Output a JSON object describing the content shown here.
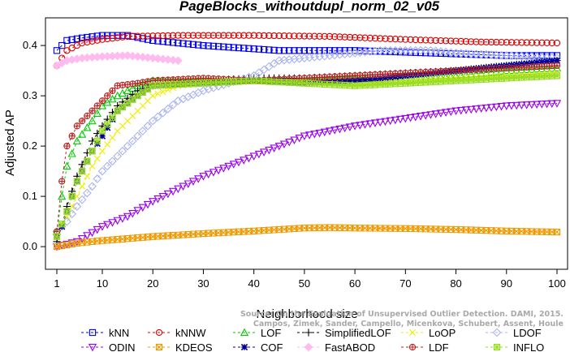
{
  "chart_data": {
    "type": "line",
    "title": "PageBlocks_withoutdupl_norm_02_v05",
    "xlabel": "Neighborhood size",
    "ylabel": "Adjusted AP",
    "xlim": [
      1,
      100
    ],
    "ylim": [
      -0.045,
      0.455
    ],
    "x_ticks": [
      1,
      10,
      20,
      30,
      40,
      50,
      60,
      70,
      80,
      90,
      100
    ],
    "y_ticks": [
      0.0,
      0.1,
      0.2,
      0.3,
      0.4
    ],
    "x_tick_labels": [
      "1",
      "10",
      "20",
      "30",
      "40",
      "50",
      "60",
      "70",
      "80",
      "90",
      "100"
    ],
    "y_tick_labels": [
      "0.0",
      "0.1",
      "0.2",
      "0.3",
      "0.4"
    ],
    "grid": false,
    "legend_position": "bottom",
    "watermark": [
      "Source: On the Evaluation of Unsupervised Outlier Detection. DAMI, 2015.",
      "Campos, Zimek, Sander, Campello, Micenkova, Schubert, Assent, Houle"
    ],
    "series": [
      {
        "name": "kNN",
        "color": "#0000ee",
        "marker": "square",
        "dash": "3,3",
        "legend_col": 0,
        "legend_row": 0,
        "points": [
          [
            1,
            0.39
          ],
          [
            3,
            0.41
          ],
          [
            6,
            0.415
          ],
          [
            10,
            0.42
          ],
          [
            15,
            0.42
          ],
          [
            20,
            0.41
          ],
          [
            30,
            0.4
          ],
          [
            45,
            0.39
          ],
          [
            60,
            0.39
          ],
          [
            75,
            0.385
          ],
          [
            90,
            0.38
          ],
          [
            100,
            0.38
          ]
        ]
      },
      {
        "name": "kNNW",
        "color": "#dd0000",
        "marker": "circle",
        "dash": "3,3",
        "legend_col": 1,
        "legend_row": 0,
        "points": [
          [
            1,
            0.36
          ],
          [
            3,
            0.39
          ],
          [
            6,
            0.405
          ],
          [
            10,
            0.412
          ],
          [
            15,
            0.418
          ],
          [
            25,
            0.42
          ],
          [
            40,
            0.42
          ],
          [
            55,
            0.418
          ],
          [
            70,
            0.412
          ],
          [
            85,
            0.407
          ],
          [
            100,
            0.405
          ]
        ]
      },
      {
        "name": "LOF",
        "color": "#00cc00",
        "marker": "triangle",
        "dash": "3,3",
        "legend_col": 2,
        "legend_row": 0,
        "points": [
          [
            1,
            0.03
          ],
          [
            2,
            0.1
          ],
          [
            3,
            0.16
          ],
          [
            5,
            0.21
          ],
          [
            8,
            0.25
          ],
          [
            10,
            0.28
          ],
          [
            13,
            0.3
          ],
          [
            17,
            0.32
          ],
          [
            20,
            0.33
          ],
          [
            30,
            0.33
          ],
          [
            40,
            0.33
          ],
          [
            50,
            0.33
          ],
          [
            60,
            0.335
          ],
          [
            70,
            0.33
          ],
          [
            80,
            0.34
          ],
          [
            90,
            0.35
          ],
          [
            100,
            0.355
          ]
        ]
      },
      {
        "name": "SimplifiedLOF",
        "color": "#000000",
        "marker": "plus",
        "dash": "3,3",
        "legend_col": 3,
        "legend_row": 0,
        "points": [
          [
            1,
            0.01
          ],
          [
            2,
            0.04
          ],
          [
            3,
            0.08
          ],
          [
            5,
            0.14
          ],
          [
            8,
            0.21
          ],
          [
            10,
            0.24
          ],
          [
            13,
            0.28
          ],
          [
            17,
            0.31
          ],
          [
            20,
            0.32
          ],
          [
            30,
            0.33
          ],
          [
            40,
            0.335
          ],
          [
            50,
            0.335
          ],
          [
            60,
            0.34
          ],
          [
            70,
            0.345
          ],
          [
            80,
            0.35
          ],
          [
            90,
            0.36
          ],
          [
            100,
            0.37
          ]
        ]
      },
      {
        "name": "LoOP",
        "color": "#eeee00",
        "marker": "x",
        "dash": "3,3",
        "legend_col": 4,
        "legend_row": 0,
        "points": [
          [
            1,
            0.02
          ],
          [
            3,
            0.06
          ],
          [
            5,
            0.1
          ],
          [
            8,
            0.16
          ],
          [
            10,
            0.19
          ],
          [
            13,
            0.23
          ],
          [
            17,
            0.27
          ],
          [
            20,
            0.3
          ],
          [
            25,
            0.32
          ],
          [
            30,
            0.325
          ],
          [
            40,
            0.33
          ],
          [
            50,
            0.325
          ],
          [
            60,
            0.325
          ],
          [
            70,
            0.33
          ],
          [
            80,
            0.335
          ],
          [
            90,
            0.34
          ],
          [
            100,
            0.345
          ]
        ]
      },
      {
        "name": "LDOF",
        "color": "#aab4ee",
        "marker": "diamond",
        "dash": "3,3",
        "legend_col": 5,
        "legend_row": 0,
        "points": [
          [
            1,
            0.03
          ],
          [
            3,
            0.05
          ],
          [
            5,
            0.08
          ],
          [
            8,
            0.12
          ],
          [
            10,
            0.15
          ],
          [
            13,
            0.18
          ],
          [
            16,
            0.21
          ],
          [
            20,
            0.25
          ],
          [
            25,
            0.29
          ],
          [
            30,
            0.31
          ],
          [
            35,
            0.325
          ],
          [
            40,
            0.34
          ],
          [
            45,
            0.37
          ],
          [
            50,
            0.375
          ],
          [
            55,
            0.38
          ],
          [
            60,
            0.385
          ],
          [
            65,
            0.39
          ],
          [
            70,
            0.39
          ],
          [
            75,
            0.39
          ],
          [
            80,
            0.385
          ],
          [
            90,
            0.38
          ],
          [
            100,
            0.375
          ]
        ]
      },
      {
        "name": "ODIN",
        "color": "#9900ee",
        "marker": "triangle-down",
        "dash": "3,3",
        "legend_col": 0,
        "legend_row": 1,
        "points": [
          [
            1,
            0.0
          ],
          [
            5,
            0.01
          ],
          [
            10,
            0.04
          ],
          [
            15,
            0.06
          ],
          [
            20,
            0.09
          ],
          [
            30,
            0.14
          ],
          [
            40,
            0.18
          ],
          [
            50,
            0.22
          ],
          [
            55,
            0.23
          ],
          [
            60,
            0.24
          ],
          [
            70,
            0.255
          ],
          [
            80,
            0.27
          ],
          [
            90,
            0.28
          ],
          [
            100,
            0.285
          ]
        ]
      },
      {
        "name": "KDEOS",
        "color": "#ee9900",
        "marker": "square-x",
        "dash": "3,3",
        "legend_col": 1,
        "legend_row": 1,
        "points": [
          [
            1,
            0.0
          ],
          [
            5,
            0.007
          ],
          [
            10,
            0.012
          ],
          [
            20,
            0.02
          ],
          [
            30,
            0.026
          ],
          [
            40,
            0.031
          ],
          [
            50,
            0.037
          ],
          [
            55,
            0.038
          ],
          [
            60,
            0.037
          ],
          [
            70,
            0.036
          ],
          [
            80,
            0.034
          ],
          [
            90,
            0.031
          ],
          [
            100,
            0.029
          ]
        ]
      },
      {
        "name": "COF",
        "color": "#000099",
        "marker": "star",
        "dash": "3,3",
        "legend_col": 2,
        "legend_row": 1,
        "points": [
          [
            1,
            0.02
          ],
          [
            2,
            0.04
          ],
          [
            3,
            0.07
          ],
          [
            5,
            0.13
          ],
          [
            8,
            0.19
          ],
          [
            10,
            0.22
          ],
          [
            13,
            0.27
          ],
          [
            17,
            0.3
          ],
          [
            20,
            0.32
          ],
          [
            30,
            0.325
          ],
          [
            40,
            0.33
          ],
          [
            50,
            0.325
          ],
          [
            60,
            0.33
          ],
          [
            70,
            0.34
          ],
          [
            80,
            0.35
          ],
          [
            90,
            0.36
          ],
          [
            100,
            0.37
          ]
        ]
      },
      {
        "name": "FastABOD",
        "color": "#ffbbee",
        "marker": "diamond-filled",
        "dash": "3,3",
        "legend_col": 3,
        "legend_row": 1,
        "points": [
          [
            1,
            0.36
          ],
          [
            3,
            0.37
          ],
          [
            6,
            0.375
          ],
          [
            10,
            0.378
          ],
          [
            15,
            0.38
          ],
          [
            20,
            0.375
          ],
          [
            25,
            0.37
          ]
        ]
      },
      {
        "name": "LDF",
        "color": "#bb2222",
        "marker": "circle-plus",
        "dash": "3,3",
        "legend_col": 4,
        "legend_row": 1,
        "points": [
          [
            1,
            0.03
          ],
          [
            2,
            0.13
          ],
          [
            3,
            0.2
          ],
          [
            5,
            0.24
          ],
          [
            8,
            0.27
          ],
          [
            10,
            0.29
          ],
          [
            13,
            0.32
          ],
          [
            17,
            0.325
          ],
          [
            20,
            0.33
          ],
          [
            30,
            0.335
          ],
          [
            40,
            0.33
          ],
          [
            50,
            0.335
          ],
          [
            60,
            0.34
          ],
          [
            70,
            0.345
          ],
          [
            80,
            0.35
          ],
          [
            90,
            0.355
          ],
          [
            100,
            0.36
          ]
        ]
      },
      {
        "name": "INFLO",
        "color": "#99dd22",
        "marker": "square-cross",
        "dash": "3,3",
        "legend_col": 5,
        "legend_row": 1,
        "points": [
          [
            1,
            0.02
          ],
          [
            3,
            0.07
          ],
          [
            5,
            0.13
          ],
          [
            8,
            0.19
          ],
          [
            10,
            0.23
          ],
          [
            13,
            0.27
          ],
          [
            17,
            0.3
          ],
          [
            20,
            0.32
          ],
          [
            30,
            0.325
          ],
          [
            40,
            0.33
          ],
          [
            50,
            0.325
          ],
          [
            60,
            0.32
          ],
          [
            70,
            0.325
          ],
          [
            80,
            0.33
          ],
          [
            90,
            0.335
          ],
          [
            100,
            0.34
          ]
        ]
      }
    ]
  }
}
